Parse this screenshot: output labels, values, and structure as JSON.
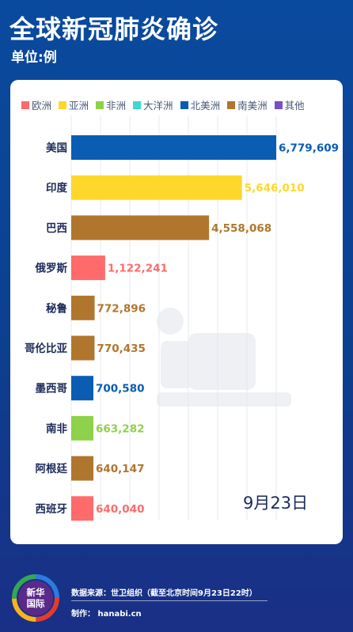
{
  "header": {
    "title": "全球新冠肺炎确诊",
    "unit": "单位:例"
  },
  "legend": [
    {
      "label": "欧洲",
      "color": "#ff6b6b"
    },
    {
      "label": "亚洲",
      "color": "#fdd82b"
    },
    {
      "label": "非洲",
      "color": "#8ed14b"
    },
    {
      "label": "大洋洲",
      "color": "#3fd6d6"
    },
    {
      "label": "北美洲",
      "color": "#0a5db3"
    },
    {
      "label": "南美洲",
      "color": "#b0762e"
    },
    {
      "label": "其他",
      "color": "#7a4fc9"
    }
  ],
  "chart_data": {
    "type": "bar",
    "orientation": "horizontal",
    "categories": [
      "美国",
      "印度",
      "巴西",
      "俄罗斯",
      "秘鲁",
      "哥伦比亚",
      "墨西哥",
      "南非",
      "阿根廷",
      "西班牙"
    ],
    "values": [
      6779609,
      5646010,
      4558068,
      1122241,
      772896,
      770435,
      700580,
      663282,
      640147,
      640040
    ],
    "value_labels": [
      "6,779,609",
      "5,646,010",
      "4,558,068",
      "1,122,241",
      "772,896",
      "770,435",
      "700,580",
      "663,282",
      "640,147",
      "640,040"
    ],
    "regions": [
      "北美洲",
      "亚洲",
      "南美洲",
      "欧洲",
      "南美洲",
      "南美洲",
      "北美洲",
      "非洲",
      "南美洲",
      "欧洲"
    ],
    "legend_position": "top",
    "grid": true,
    "annotation": "9月23日"
  },
  "footer": {
    "logo_line1": "新华",
    "logo_line2": "国际",
    "source": "数据来源：世卫组织（截至北京时间9月23日22时）",
    "maker": "制作：  hanabi.cn"
  }
}
